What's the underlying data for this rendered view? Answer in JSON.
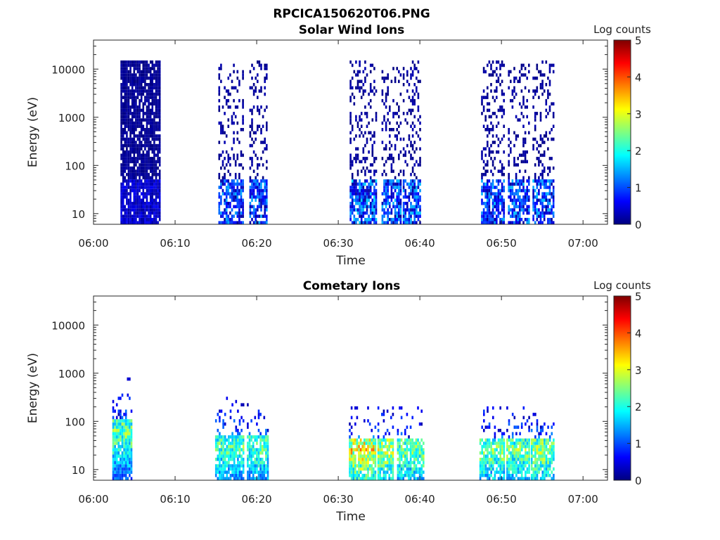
{
  "figure": {
    "title": "RPCICA150620T06.PNG"
  },
  "chart_data": [
    {
      "type": "heatmap",
      "title": "Solar Wind Ions",
      "xlabel": "Time",
      "ylabel": "Energy (eV)",
      "x_ticks": [
        "06:00",
        "06:10",
        "06:20",
        "06:30",
        "06:40",
        "06:50",
        "07:00"
      ],
      "x_range_minutes": [
        0,
        63
      ],
      "y_ticks": [
        "10",
        "100",
        "1000",
        "10000"
      ],
      "y_scale": "log",
      "y_range_ev": [
        6,
        40000
      ],
      "colorbar": {
        "label": "Log counts",
        "ticks": [
          "0",
          "1",
          "2",
          "3",
          "4",
          "5"
        ],
        "range": [
          0,
          5
        ],
        "colormap": "jet"
      },
      "segments": [
        {
          "start_min": 3.3,
          "end_min": 8.2,
          "e_max_ev": 15000,
          "fill": 0.85,
          "high_low": 0.55,
          "banded": true
        },
        {
          "start_min": 15.3,
          "end_min": 18.3,
          "e_max_ev": 12000,
          "fill": 0.45,
          "high_low": 1.4,
          "banded": false
        },
        {
          "start_min": 19.1,
          "end_min": 21.2,
          "e_max_ev": 14000,
          "fill": 0.45,
          "high_low": 1.4,
          "banded": false
        },
        {
          "start_min": 31.4,
          "end_min": 34.6,
          "e_max_ev": 14000,
          "fill": 0.45,
          "high_low": 1.6,
          "banded": false
        },
        {
          "start_min": 35.3,
          "end_min": 37.6,
          "e_max_ev": 11000,
          "fill": 0.45,
          "high_low": 1.5,
          "banded": false
        },
        {
          "start_min": 37.9,
          "end_min": 40.1,
          "e_max_ev": 14000,
          "fill": 0.45,
          "high_low": 1.5,
          "banded": false
        },
        {
          "start_min": 47.5,
          "end_min": 50.2,
          "e_max_ev": 14000,
          "fill": 0.45,
          "high_low": 1.5,
          "banded": false
        },
        {
          "start_min": 50.8,
          "end_min": 53.4,
          "e_max_ev": 12000,
          "fill": 0.45,
          "high_low": 1.5,
          "banded": false
        },
        {
          "start_min": 53.8,
          "end_min": 56.4,
          "e_max_ev": 14000,
          "fill": 0.45,
          "high_low": 1.5,
          "banded": false
        }
      ]
    },
    {
      "type": "heatmap",
      "title": "Cometary Ions",
      "xlabel": "Time",
      "ylabel": "Energy (eV)",
      "x_ticks": [
        "06:00",
        "06:10",
        "06:20",
        "06:30",
        "06:40",
        "06:50",
        "07:00"
      ],
      "x_range_minutes": [
        0,
        63
      ],
      "y_ticks": [
        "10",
        "100",
        "1000",
        "10000"
      ],
      "y_scale": "log",
      "y_range_ev": [
        6,
        40000
      ],
      "colorbar": {
        "label": "Log counts",
        "ticks": [
          "0",
          "1",
          "2",
          "3",
          "4",
          "5"
        ],
        "range": [
          0,
          5
        ],
        "colormap": "jet"
      },
      "segments": [
        {
          "start_min": 2.3,
          "end_min": 4.6,
          "e_max_ev": 800,
          "core_ev": 60,
          "peak": 3.0,
          "fill": 0.8
        },
        {
          "start_min": 14.9,
          "end_min": 18.3,
          "e_max_ev": 300,
          "core_ev": 30,
          "peak": 2.8,
          "fill": 0.7
        },
        {
          "start_min": 18.8,
          "end_min": 21.3,
          "e_max_ev": 250,
          "core_ev": 30,
          "peak": 2.8,
          "fill": 0.7
        },
        {
          "start_min": 31.3,
          "end_min": 34.6,
          "e_max_ev": 200,
          "core_ev": 25,
          "peak": 3.8,
          "fill": 0.7
        },
        {
          "start_min": 34.8,
          "end_min": 36.8,
          "e_max_ev": 200,
          "core_ev": 25,
          "peak": 3.4,
          "fill": 0.7
        },
        {
          "start_min": 37.2,
          "end_min": 40.5,
          "e_max_ev": 200,
          "core_ev": 25,
          "peak": 3.0,
          "fill": 0.7
        },
        {
          "start_min": 47.3,
          "end_min": 50.3,
          "e_max_ev": 200,
          "core_ev": 25,
          "peak": 3.0,
          "fill": 0.7
        },
        {
          "start_min": 50.6,
          "end_min": 53.4,
          "e_max_ev": 200,
          "core_ev": 25,
          "peak": 3.0,
          "fill": 0.7
        },
        {
          "start_min": 53.6,
          "end_min": 56.4,
          "e_max_ev": 200,
          "core_ev": 25,
          "peak": 3.2,
          "fill": 0.7
        }
      ]
    }
  ]
}
